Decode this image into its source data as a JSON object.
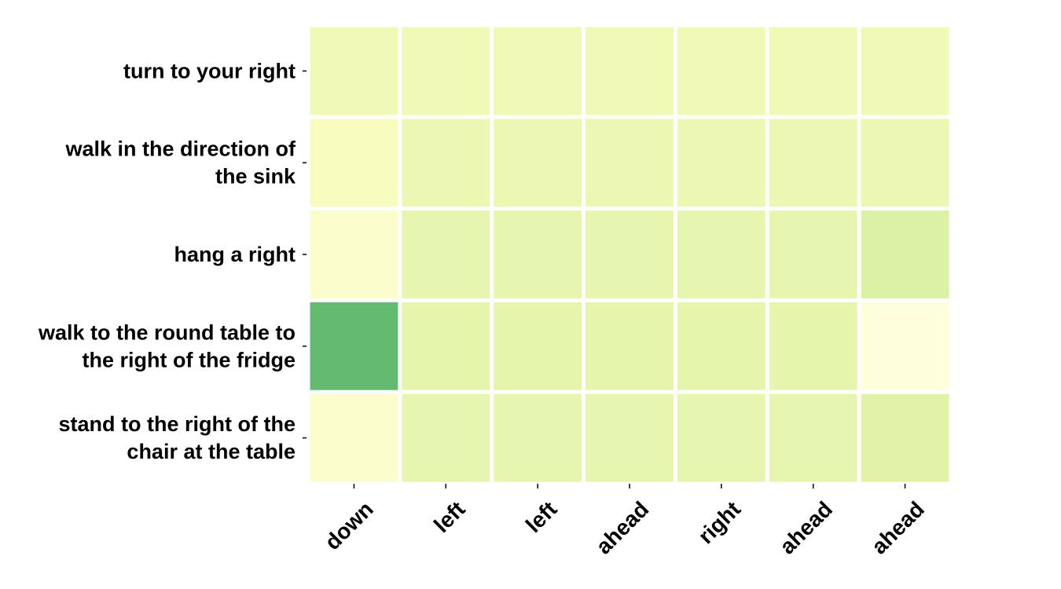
{
  "chart_data": {
    "type": "heatmap",
    "title": "",
    "xlabel": "",
    "ylabel": "",
    "rows": [
      [
        "turn to your right"
      ],
      [
        "walk in the direction of",
        "the sink"
      ],
      [
        "hang a right"
      ],
      [
        "walk to the round table to",
        "the right of the fridge"
      ],
      [
        "stand to the right of the",
        "chair at the table"
      ]
    ],
    "columns": [
      "down",
      "left",
      "left",
      "ahead",
      "right",
      "ahead",
      "ahead"
    ],
    "values": [
      [
        0.15,
        0.15,
        0.15,
        0.15,
        0.15,
        0.15,
        0.15
      ],
      [
        0.11,
        0.17,
        0.17,
        0.17,
        0.17,
        0.17,
        0.17
      ],
      [
        0.07,
        0.19,
        0.19,
        0.19,
        0.19,
        0.19,
        0.24
      ],
      [
        0.55,
        0.2,
        0.2,
        0.2,
        0.2,
        0.2,
        0.03
      ],
      [
        0.07,
        0.19,
        0.19,
        0.19,
        0.19,
        0.19,
        0.22
      ]
    ],
    "colorscale": "YlGn",
    "vmin": 0,
    "vmax": 1,
    "colorbar": false,
    "grid_color": "#ffffff"
  }
}
